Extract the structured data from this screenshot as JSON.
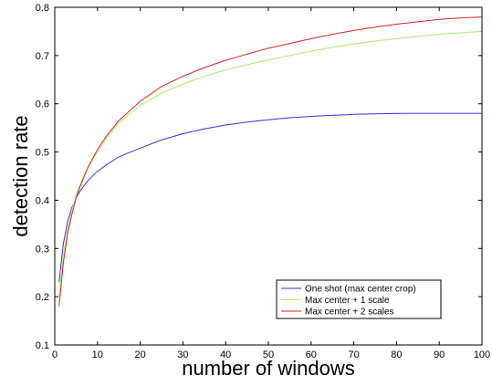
{
  "chart_data": {
    "type": "line",
    "title": "",
    "xlabel": "number of windows",
    "ylabel": "detection rate",
    "xlim": [
      0,
      100
    ],
    "ylim": [
      0.1,
      0.8
    ],
    "xticks": [
      0,
      10,
      20,
      30,
      40,
      50,
      60,
      70,
      80,
      90,
      100
    ],
    "yticks": [
      0.1,
      0.2,
      0.3,
      0.4,
      0.5,
      0.6,
      0.7,
      0.8
    ],
    "xtick_labels": [
      "0",
      "10",
      "20",
      "30",
      "40",
      "50",
      "60",
      "70",
      "80",
      "90",
      "100"
    ],
    "ytick_labels": [
      "0.1",
      "0.2",
      "0.3",
      "0.4",
      "0.5",
      "0.6",
      "0.7",
      "0.8"
    ],
    "grid": false,
    "legend": {
      "placement": "bottom-right"
    },
    "x": [
      1,
      2,
      3,
      4,
      5,
      6,
      7,
      8,
      10,
      12,
      15,
      20,
      25,
      30,
      35,
      40,
      45,
      50,
      55,
      60,
      65,
      70,
      75,
      80,
      85,
      90,
      95,
      100
    ],
    "series": [
      {
        "name": "One shot (max center crop)",
        "color": "#3333dd",
        "values": [
          0.23,
          0.31,
          0.355,
          0.385,
          0.405,
          0.42,
          0.432,
          0.443,
          0.46,
          0.473,
          0.49,
          0.508,
          0.525,
          0.538,
          0.548,
          0.556,
          0.562,
          0.567,
          0.571,
          0.574,
          0.576,
          0.578,
          0.579,
          0.58,
          0.58,
          0.58,
          0.58,
          0.58
        ]
      },
      {
        "name": "Max center + 1 scale",
        "color": "#aaee66",
        "values": [
          0.2,
          0.285,
          0.34,
          0.38,
          0.41,
          0.435,
          0.455,
          0.472,
          0.5,
          0.527,
          0.56,
          0.597,
          0.622,
          0.641,
          0.657,
          0.67,
          0.681,
          0.691,
          0.7,
          0.709,
          0.717,
          0.724,
          0.73,
          0.735,
          0.74,
          0.744,
          0.747,
          0.75
        ]
      },
      {
        "name": "Max center + 2 scales",
        "color": "#dd2222",
        "values": [
          0.18,
          0.27,
          0.33,
          0.37,
          0.405,
          0.43,
          0.452,
          0.472,
          0.505,
          0.532,
          0.565,
          0.605,
          0.636,
          0.657,
          0.675,
          0.69,
          0.703,
          0.715,
          0.725,
          0.735,
          0.744,
          0.752,
          0.759,
          0.765,
          0.77,
          0.775,
          0.778,
          0.78
        ]
      }
    ]
  }
}
